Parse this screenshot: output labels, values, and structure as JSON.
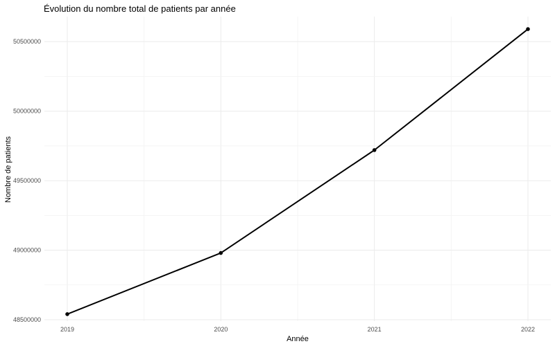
{
  "chart_data": {
    "type": "line",
    "title": "Évolution du nombre total de patients par année",
    "xlabel": "Année",
    "ylabel": "Nombre de patients",
    "x": [
      "2019",
      "2020",
      "2021",
      "2022"
    ],
    "series": [
      {
        "values": [
          48540000,
          48980000,
          49720000,
          50590000
        ]
      }
    ],
    "yticks": [
      "48500000",
      "49000000",
      "49500000",
      "50000000",
      "50500000"
    ],
    "ylim": [
      48490000,
      50680000
    ],
    "grid": true,
    "legend": "none",
    "colors": {
      "line": "#000000",
      "grid_major": "#ebebeb",
      "grid_minor": "#f2f2f2",
      "background": "#ffffff"
    }
  }
}
